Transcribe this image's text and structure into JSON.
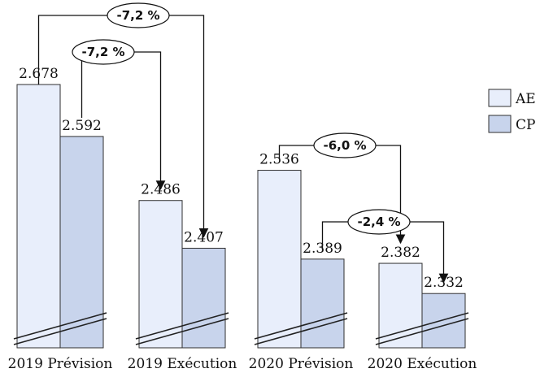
{
  "chart_data": {
    "type": "bar",
    "categories": [
      "2019 Prévision",
      "2019 Exécution",
      "2020 Prévision",
      "2020 Exécution"
    ],
    "series": [
      {
        "name": "AE",
        "values": [
          2678,
          2486,
          2536,
          2382
        ],
        "labels": [
          "2.678",
          "2.486",
          "2.536",
          "2.382"
        ]
      },
      {
        "name": "CP",
        "values": [
          2592,
          2407,
          2389,
          2332
        ],
        "labels": [
          "2.592",
          "2.407",
          "2.389",
          "2.332"
        ]
      }
    ],
    "axis_break": true,
    "grid": false,
    "legend": "right",
    "colors": {
      "AE": "#e8eefb",
      "CP": "#c8d4ec",
      "outline": "#2f2f2f"
    },
    "annotations": [
      {
        "text": "-7,2 %",
        "from": {
          "series": "AE",
          "category": "2019 Prévision"
        },
        "to": {
          "series": "CP",
          "category": "2019 Exécution"
        }
      },
      {
        "text": "-7,2 %",
        "from": {
          "series": "CP",
          "category": "2019 Prévision"
        },
        "to": {
          "series": "AE",
          "category": "2019 Exécution"
        }
      },
      {
        "text": "-6,0 %",
        "from": {
          "series": "AE",
          "category": "2020 Prévision"
        },
        "to": {
          "series": "AE",
          "category": "2020 Exécution"
        }
      },
      {
        "text": "-2,4 %",
        "from": {
          "series": "CP",
          "category": "2020 Prévision"
        },
        "to": {
          "series": "CP",
          "category": "2020 Exécution"
        }
      }
    ]
  }
}
